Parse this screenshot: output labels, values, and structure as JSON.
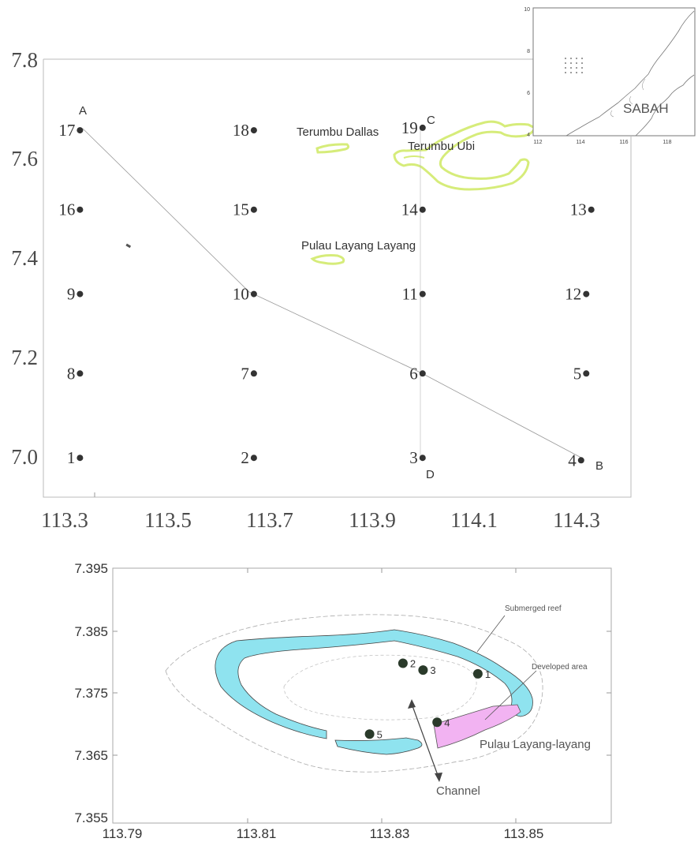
{
  "top_map": {
    "y_ticks": [
      "7.8",
      "7.6",
      "7.4",
      "7.2",
      "7.0"
    ],
    "x_ticks": [
      "113.3",
      "113.5",
      "113.7",
      "113.9",
      "114.1",
      "114.3"
    ],
    "stations": [
      {
        "id": "17",
        "lon": 113.33,
        "lat": 7.66
      },
      {
        "id": "18",
        "lon": 113.67,
        "lat": 7.66
      },
      {
        "id": "19",
        "lon": 114.0,
        "lat": 7.665
      },
      {
        "id": "16",
        "lon": 113.33,
        "lat": 7.5
      },
      {
        "id": "15",
        "lon": 113.67,
        "lat": 7.5
      },
      {
        "id": "14",
        "lon": 114.0,
        "lat": 7.5
      },
      {
        "id": "13",
        "lon": 114.33,
        "lat": 7.5
      },
      {
        "id": "9",
        "lon": 113.33,
        "lat": 7.33
      },
      {
        "id": "10",
        "lon": 113.67,
        "lat": 7.33
      },
      {
        "id": "11",
        "lon": 114.0,
        "lat": 7.33
      },
      {
        "id": "12",
        "lon": 114.32,
        "lat": 7.33
      },
      {
        "id": "8",
        "lon": 113.33,
        "lat": 7.17
      },
      {
        "id": "7",
        "lon": 113.67,
        "lat": 7.17
      },
      {
        "id": "6",
        "lon": 114.0,
        "lat": 7.17
      },
      {
        "id": "5",
        "lon": 114.32,
        "lat": 7.17
      },
      {
        "id": "1",
        "lon": 113.33,
        "lat": 7.0
      },
      {
        "id": "2",
        "lon": 113.67,
        "lat": 7.0
      },
      {
        "id": "3",
        "lon": 114.0,
        "lat": 7.0
      },
      {
        "id": "4",
        "lon": 114.31,
        "lat": 6.995
      }
    ],
    "transect_points": [
      "A",
      "B",
      "C",
      "D"
    ],
    "place_names": {
      "terumbu_dallas": "Terumbu Dallas",
      "terumbu_ubi": "Terumbu Ubi",
      "pulau_layang_layang": "Pulau Layang Layang"
    },
    "reef_outline_color": "#d6ec7a"
  },
  "inset_map": {
    "y_ticks": [
      "10",
      "8",
      "6",
      "4"
    ],
    "x_ticks": [
      "112",
      "114",
      "116",
      "118"
    ],
    "region_label": "SABAH"
  },
  "bottom_map": {
    "y_ticks": [
      "7.395",
      "7.385",
      "7.375",
      "7.365",
      "7.355"
    ],
    "x_ticks": [
      "113.79",
      "113.81",
      "113.83",
      "113.85"
    ],
    "sites": [
      {
        "id": "1",
        "lon": 113.8432,
        "lat": 7.378
      },
      {
        "id": "2",
        "lon": 113.832,
        "lat": 7.3797
      },
      {
        "id": "3",
        "lon": 113.835,
        "lat": 7.3786
      },
      {
        "id": "4",
        "lon": 113.8371,
        "lat": 7.3702
      },
      {
        "id": "5",
        "lon": 113.827,
        "lat": 7.3683
      }
    ],
    "callouts": {
      "submerged_reef": "Submerged reef",
      "developed_area": "Developed area",
      "island": "Pulau Layang-layang",
      "channel": "Channel"
    },
    "reef_color": "#8fe3ef",
    "developed_color": "#f2b3f2"
  }
}
